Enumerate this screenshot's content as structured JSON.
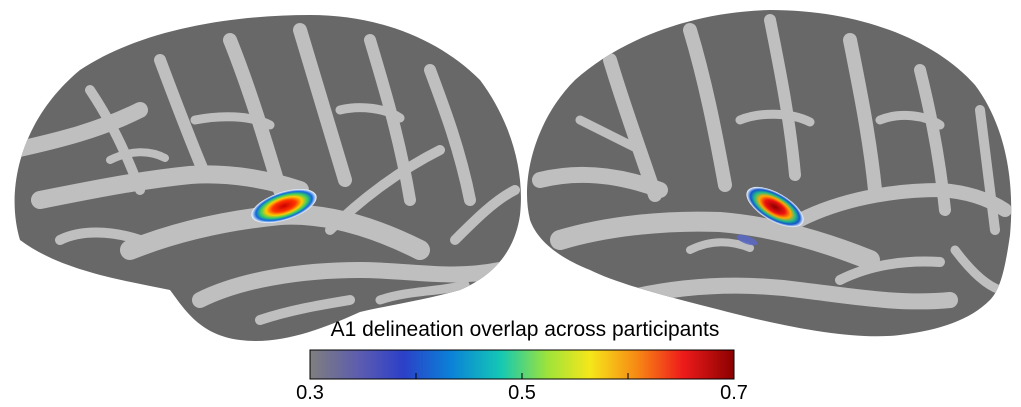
{
  "figure": {
    "background": "#ffffff",
    "sulcus_color": "#686868",
    "gyrus_color": "#bfbfbf",
    "hemispheres": [
      "left-lateral",
      "right-lateral"
    ]
  },
  "colorbar": {
    "title": "A1 delineation overlap across participants",
    "min": 0.3,
    "max": 0.7,
    "tick_labels": [
      "0.3",
      "0.5",
      "0.7"
    ],
    "tick_values": [
      0.3,
      0.4,
      0.5,
      0.6,
      0.7
    ],
    "colormap": [
      "#7f7f7f",
      "#5b5bb0",
      "#2c40c8",
      "#0b80d8",
      "#14c8b4",
      "#9ee33a",
      "#f5e71a",
      "#f78a14",
      "#ee1b1b",
      "#8b0000"
    ]
  }
}
